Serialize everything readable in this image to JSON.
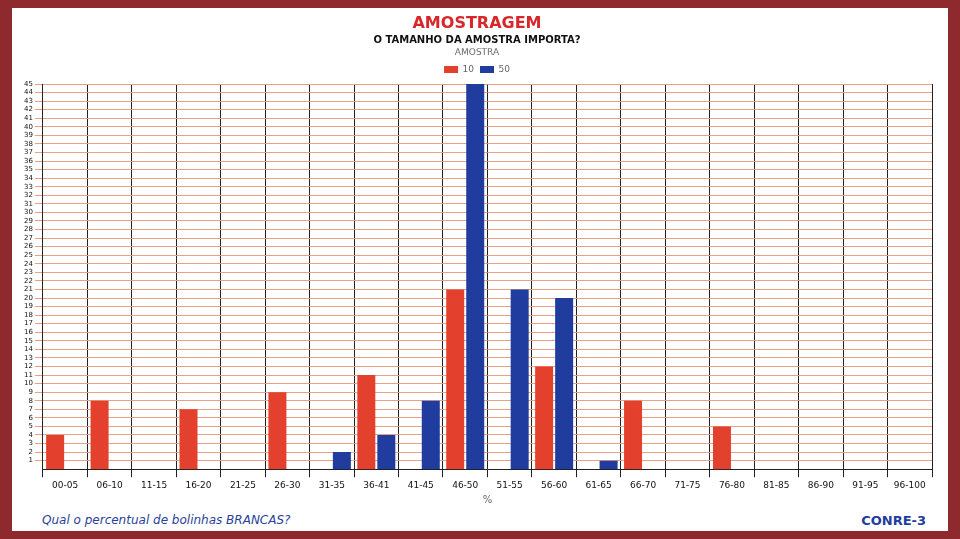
{
  "chart_data": {
    "type": "bar",
    "title": "AMOSTRAGEM",
    "subtitle": "O TAMANHO DA AMOSTRA IMPORTA?",
    "x_label": "%",
    "legend_title": "AMOSTRA",
    "annotation": "Qual o percentual de bolinhas BRANCAS?",
    "source": "CONRE-3",
    "categories": [
      "00-05",
      "06-10",
      "11-15",
      "16-20",
      "21-25",
      "26-30",
      "31-35",
      "36-41",
      "41-45",
      "46-50",
      "51-55",
      "56-60",
      "61-65",
      "66-70",
      "71-75",
      "76-80",
      "81-85",
      "86-90",
      "91-95",
      "96-100"
    ],
    "series": [
      {
        "name": "10",
        "color": "#e3402e",
        "values": [
          4,
          8,
          0,
          7,
          0,
          9,
          0,
          11,
          0,
          21,
          0,
          12,
          0,
          8,
          0,
          5,
          0,
          0,
          0,
          0
        ]
      },
      {
        "name": "50",
        "color": "#1f3c9e",
        "values": [
          0,
          0,
          0,
          0,
          0,
          0,
          2,
          4,
          8,
          45,
          21,
          20,
          1,
          0,
          0,
          0,
          0,
          0,
          0,
          0
        ]
      }
    ],
    "ylim": [
      0,
      45
    ],
    "yticks": [
      1,
      2,
      3,
      4,
      5,
      6,
      7,
      8,
      9,
      10,
      11,
      12,
      13,
      14,
      15,
      16,
      17,
      18,
      19,
      20,
      21,
      22,
      23,
      24,
      25,
      26,
      27,
      28,
      29,
      30,
      31,
      32,
      33,
      34,
      35,
      36,
      37,
      38,
      39,
      40,
      41,
      42,
      43,
      44,
      45
    ],
    "grid": true,
    "legend": "top"
  }
}
